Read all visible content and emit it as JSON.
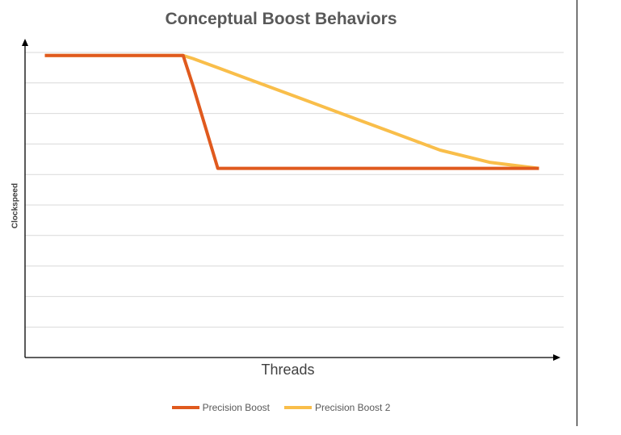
{
  "chart_data": {
    "type": "line",
    "title": "Conceptual Boost Behaviors",
    "xlabel": "Threads",
    "ylabel": "Clockspeed",
    "x": [
      0,
      0.1,
      0.2,
      0.27,
      0.28,
      0.3,
      0.35,
      0.4,
      0.5,
      0.6,
      0.7,
      0.8,
      0.9,
      0.95,
      1.0
    ],
    "xlim": [
      -0.04,
      1.05
    ],
    "ylim": [
      0,
      10
    ],
    "grid": true,
    "legend": "bottom",
    "series": [
      {
        "name": "Precision Boost",
        "color": "#E05A1E",
        "values": [
          9.9,
          9.9,
          9.9,
          9.9,
          9.9,
          8.9,
          6.2,
          6.2,
          6.2,
          6.2,
          6.2,
          6.2,
          6.2,
          6.2,
          6.2
        ]
      },
      {
        "name": "Precision Boost 2",
        "color": "#F9BE4A",
        "values": [
          9.9,
          9.9,
          9.9,
          9.9,
          9.9,
          9.8,
          9.5,
          9.2,
          8.6,
          8.0,
          7.4,
          6.8,
          6.4,
          6.3,
          6.2
        ]
      }
    ]
  }
}
